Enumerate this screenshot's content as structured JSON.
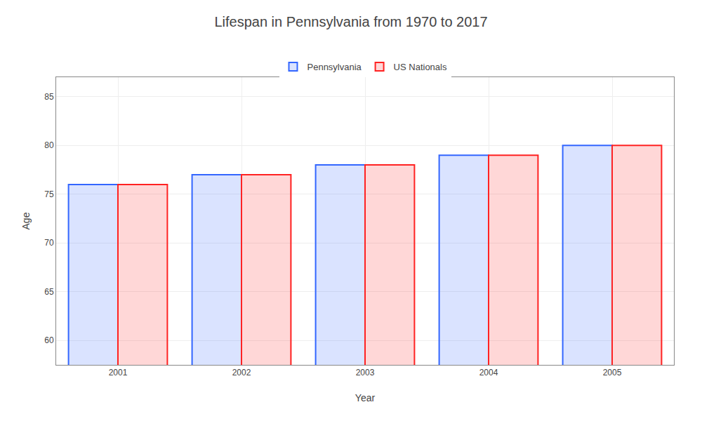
{
  "chart_data": {
    "type": "bar",
    "title": "Lifespan in Pennsylvania from 1970 to 2017",
    "xlabel": "Year",
    "ylabel": "Age",
    "categories": [
      "2001",
      "2002",
      "2003",
      "2004",
      "2005"
    ],
    "series": [
      {
        "name": "Pennsylvania",
        "color": "#3366ff",
        "values": [
          76,
          77,
          78,
          79,
          80
        ]
      },
      {
        "name": "US Nationals",
        "color": "#ff2222",
        "values": [
          76,
          77,
          78,
          79,
          80
        ]
      }
    ],
    "ylim": [
      57.5,
      87
    ],
    "yticks": [
      60,
      65,
      70,
      75,
      80,
      85
    ],
    "grid": true,
    "legend": "top"
  }
}
